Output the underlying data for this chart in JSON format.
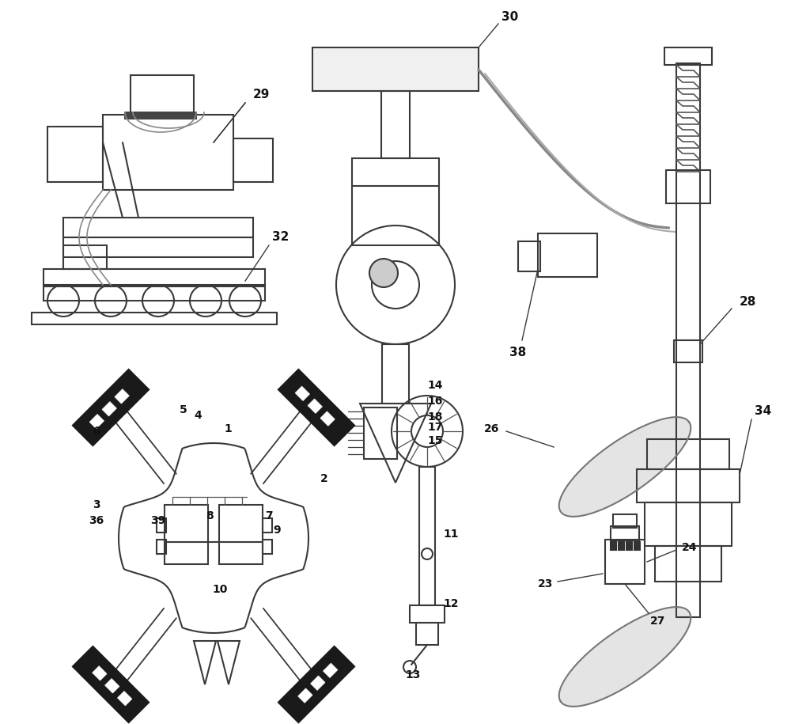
{
  "bg_color": "#ffffff",
  "line_color": "#3a3a3a",
  "line_width": 1.5,
  "label_color": "#111111",
  "figsize": [
    10.0,
    9.15
  ],
  "dpi": 100
}
